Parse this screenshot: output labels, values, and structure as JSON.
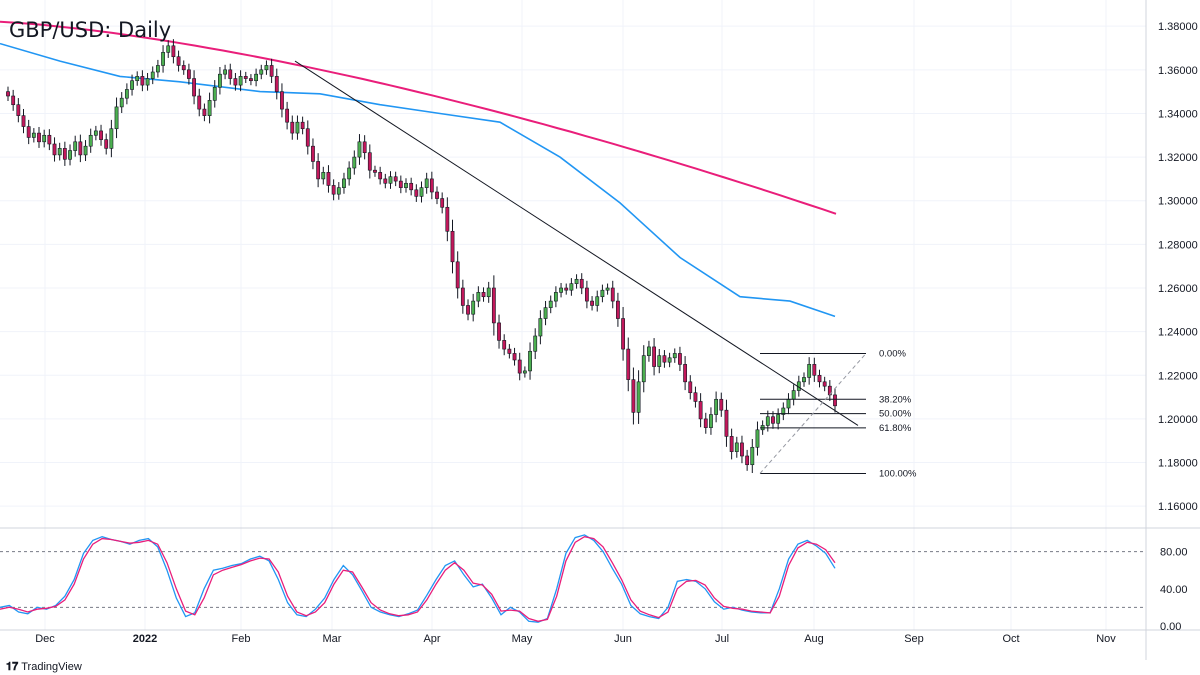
{
  "title": "GBP/USD: Daily",
  "branding": {
    "name": "TradingView",
    "logo_icon": "tradingview-logo-icon"
  },
  "chart_data": [
    {
      "type": "candlestick",
      "symbol": "GBP/USD",
      "timeframe": "Daily",
      "x_labels": [
        "Dec",
        "2022",
        "Feb",
        "Mar",
        "Apr",
        "May",
        "Jun",
        "Jul",
        "Aug",
        "Sep",
        "Oct",
        "Nov"
      ],
      "y_ticks": [
        "1.38000",
        "1.36000",
        "1.34000",
        "1.32000",
        "1.30000",
        "1.28000",
        "1.26000",
        "1.24000",
        "1.22000",
        "1.20000",
        "1.18000",
        "1.16000"
      ],
      "ylim": [
        1.15,
        1.392
      ],
      "colors": {
        "up": "#4caf50",
        "down": "#c2185b",
        "wick": "#131722",
        "ma_slow": "#e91e7a",
        "ma_fast": "#2196f3",
        "trendline": "#131722",
        "grid": "#f0f3fa"
      },
      "approx_closes": [
        1.348,
        1.344,
        1.339,
        1.334,
        1.329,
        1.331,
        1.327,
        1.33,
        1.326,
        1.321,
        1.324,
        1.319,
        1.323,
        1.327,
        1.321,
        1.325,
        1.33,
        1.332,
        1.328,
        1.324,
        1.333,
        1.343,
        1.347,
        1.351,
        1.355,
        1.357,
        1.353,
        1.356,
        1.359,
        1.362,
        1.368,
        1.371,
        1.366,
        1.362,
        1.36,
        1.356,
        1.348,
        1.342,
        1.339,
        1.346,
        1.352,
        1.358,
        1.36,
        1.356,
        1.353,
        1.357,
        1.356,
        1.355,
        1.358,
        1.36,
        1.362,
        1.357,
        1.35,
        1.342,
        1.336,
        1.331,
        1.336,
        1.333,
        1.325,
        1.318,
        1.31,
        1.313,
        1.307,
        1.303,
        1.306,
        1.31,
        1.315,
        1.32,
        1.327,
        1.322,
        1.314,
        1.313,
        1.31,
        1.308,
        1.311,
        1.309,
        1.306,
        1.308,
        1.305,
        1.302,
        1.306,
        1.31,
        1.304,
        1.301,
        1.297,
        1.286,
        1.272,
        1.26,
        1.252,
        1.248,
        1.254,
        1.258,
        1.256,
        1.26,
        1.244,
        1.236,
        1.232,
        1.23,
        1.227,
        1.221,
        1.222,
        1.231,
        1.238,
        1.246,
        1.251,
        1.254,
        1.258,
        1.26,
        1.259,
        1.262,
        1.264,
        1.26,
        1.254,
        1.252,
        1.256,
        1.259,
        1.26,
        1.254,
        1.246,
        1.232,
        1.218,
        1.203,
        1.217,
        1.229,
        1.233,
        1.224,
        1.229,
        1.226,
        1.228,
        1.23,
        1.225,
        1.217,
        1.212,
        1.208,
        1.2,
        1.196,
        1.202,
        1.209,
        1.204,
        1.192,
        1.185,
        1.189,
        1.183,
        1.179,
        1.187,
        1.195,
        1.197,
        1.201,
        1.198,
        1.202,
        1.205,
        1.209,
        1.213,
        1.217,
        1.219,
        1.225,
        1.22,
        1.217,
        1.215,
        1.211,
        1.206
      ],
      "moving_averages": [
        {
          "color": "#e91e7a",
          "start": 1.382,
          "end": 1.294
        },
        {
          "color": "#2196f3",
          "start": 1.372,
          "end": 1.247
        }
      ],
      "trendline": {
        "from": 1.364,
        "to": 1.197
      },
      "fibonacci": {
        "levels": [
          {
            "label": "0.00%",
            "price": 1.23
          },
          {
            "label": "38.20%",
            "price": 1.209
          },
          {
            "label": "50.00%",
            "price": 1.2024
          },
          {
            "label": "61.80%",
            "price": 1.1959
          },
          {
            "label": "100.00%",
            "price": 1.175
          }
        ]
      }
    },
    {
      "type": "line",
      "indicator": "Stochastic",
      "y_ticks": [
        "80.00",
        "40.00",
        "0.00"
      ],
      "ylim": [
        0,
        100
      ],
      "levels": [
        80,
        20
      ],
      "series": [
        {
          "color": "#2196f3",
          "values": [
            20,
            22,
            15,
            13,
            20,
            18,
            22,
            32,
            50,
            78,
            92,
            96,
            93,
            91,
            88,
            92,
            94,
            85,
            60,
            30,
            10,
            14,
            40,
            60,
            62,
            65,
            67,
            72,
            75,
            70,
            50,
            25,
            12,
            10,
            18,
            30,
            50,
            65,
            55,
            38,
            20,
            15,
            12,
            10,
            13,
            17,
            33,
            50,
            65,
            70,
            55,
            42,
            45,
            30,
            12,
            20,
            15,
            5,
            4,
            8,
            40,
            78,
            95,
            98,
            92,
            80,
            62,
            45,
            22,
            13,
            10,
            8,
            20,
            48,
            50,
            48,
            40,
            26,
            18,
            20,
            17,
            15,
            14,
            14,
            40,
            72,
            88,
            92,
            86,
            78,
            62
          ]
        },
        {
          "color": "#e91e7a",
          "values": [
            18,
            20,
            18,
            15,
            18,
            19,
            21,
            28,
            45,
            72,
            88,
            94,
            93,
            91,
            89,
            90,
            92,
            88,
            68,
            40,
            16,
            12,
            30,
            55,
            60,
            63,
            66,
            70,
            73,
            72,
            58,
            32,
            15,
            11,
            15,
            25,
            45,
            60,
            58,
            42,
            25,
            17,
            13,
            11,
            12,
            15,
            28,
            45,
            60,
            68,
            60,
            46,
            44,
            34,
            16,
            17,
            16,
            8,
            5,
            7,
            32,
            70,
            90,
            96,
            94,
            85,
            68,
            50,
            28,
            16,
            12,
            9,
            15,
            40,
            48,
            49,
            44,
            30,
            21,
            19,
            18,
            16,
            15,
            14,
            32,
            65,
            84,
            90,
            88,
            82,
            68
          ]
        }
      ]
    }
  ]
}
